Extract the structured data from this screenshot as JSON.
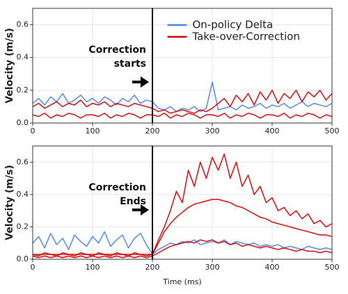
{
  "chart_data": [
    {
      "type": "line",
      "ylabel": "Velocity (m/s)",
      "annotation": [
        "Correction",
        "starts"
      ],
      "vline": 200,
      "xlim": [
        0,
        500
      ],
      "xticks": [
        0,
        100,
        200,
        300,
        400,
        500
      ],
      "ylim": [
        0,
        0.7
      ],
      "yticks": [
        {
          "value": 0,
          "label": "0.0"
        },
        0.2,
        0.4,
        0.6
      ],
      "grid": true,
      "legend": "upper right",
      "x": [
        0,
        10,
        20,
        30,
        40,
        50,
        60,
        70,
        80,
        90,
        100,
        110,
        120,
        130,
        140,
        150,
        160,
        170,
        180,
        190,
        200,
        210,
        220,
        230,
        240,
        250,
        260,
        270,
        280,
        290,
        300,
        310,
        320,
        330,
        340,
        350,
        360,
        370,
        380,
        390,
        400,
        410,
        420,
        430,
        440,
        450,
        460,
        470,
        480,
        490,
        500
      ],
      "series": [
        {
          "name": "On-policy Delta",
          "color": "#4a86e8",
          "values": [
            0.12,
            0.15,
            0.11,
            0.16,
            0.13,
            0.18,
            0.12,
            0.14,
            0.17,
            0.13,
            0.15,
            0.12,
            0.16,
            0.14,
            0.11,
            0.15,
            0.13,
            0.17,
            0.12,
            0.14,
            0.13,
            0.09,
            0.08,
            0.1,
            0.07,
            0.09,
            0.08,
            0.1,
            0.07,
            0.09,
            0.25,
            0.08,
            0.09,
            0.1,
            0.08,
            0.11,
            0.09,
            0.1,
            0.12,
            0.09,
            0.11,
            0.1,
            0.12,
            0.09,
            0.11,
            0.13,
            0.1,
            0.12,
            0.11,
            0.1,
            0.12
          ]
        },
        {
          "name": "Take-over-Correction",
          "color": "#d40000",
          "values": [
            0.1,
            0.12,
            0.09,
            0.11,
            0.13,
            0.1,
            0.12,
            0.11,
            0.14,
            0.1,
            0.12,
            0.11,
            0.13,
            0.1,
            0.12,
            0.11,
            0.1,
            0.12,
            0.11,
            0.1,
            0.09,
            0.07,
            0.08,
            0.06,
            0.07,
            0.08,
            0.07,
            0.06,
            0.08,
            0.07,
            0.09,
            0.12,
            0.15,
            0.1,
            0.17,
            0.13,
            0.18,
            0.11,
            0.19,
            0.14,
            0.2,
            0.12,
            0.18,
            0.15,
            0.2,
            0.13,
            0.19,
            0.16,
            0.2,
            0.14,
            0.18
          ]
        },
        {
          "color": "#d40000",
          "values": [
            0.05,
            0.04,
            0.06,
            0.03,
            0.05,
            0.04,
            0.06,
            0.05,
            0.03,
            0.05,
            0.05,
            0.04,
            0.06,
            0.03,
            0.05,
            0.04,
            0.06,
            0.05,
            0.03,
            0.05,
            0.05,
            0.04,
            0.06,
            0.03,
            0.05,
            0.04,
            0.06,
            0.05,
            0.03,
            0.05,
            0.05,
            0.04,
            0.06,
            0.03,
            0.05,
            0.04,
            0.06,
            0.05,
            0.03,
            0.05,
            0.05,
            0.04,
            0.06,
            0.03,
            0.05,
            0.04,
            0.06,
            0.05,
            0.03,
            0.05,
            0.04
          ]
        }
      ]
    },
    {
      "type": "line",
      "ylabel": "Velocity (m/s)",
      "xlabel": "Time (ms)",
      "annotation": [
        "Correction",
        "Ends"
      ],
      "vline": 200,
      "xlim": [
        0,
        500
      ],
      "xticks": [
        0,
        100,
        200,
        300,
        400,
        500
      ],
      "ylim": [
        0,
        0.7
      ],
      "yticks": [
        {
          "value": 0,
          "label": "0.0"
        },
        0.2,
        0.4,
        0.6
      ],
      "grid": true,
      "x": [
        0,
        10,
        20,
        30,
        40,
        50,
        60,
        70,
        80,
        90,
        100,
        110,
        120,
        130,
        140,
        150,
        160,
        170,
        180,
        190,
        200,
        210,
        220,
        230,
        240,
        250,
        260,
        270,
        280,
        290,
        300,
        310,
        320,
        330,
        340,
        350,
        360,
        370,
        380,
        390,
        400,
        410,
        420,
        430,
        440,
        450,
        460,
        470,
        480,
        490,
        500
      ],
      "series": [
        {
          "color": "#4a86e8",
          "values": [
            0.1,
            0.14,
            0.07,
            0.16,
            0.09,
            0.13,
            0.06,
            0.15,
            0.11,
            0.08,
            0.14,
            0.1,
            0.17,
            0.08,
            0.12,
            0.15,
            0.07,
            0.13,
            0.16,
            0.09,
            0.03,
            0.06,
            0.08,
            0.1,
            0.09,
            0.11,
            0.1,
            0.12,
            0.09,
            0.1,
            0.11,
            0.1,
            0.12,
            0.09,
            0.11,
            0.1,
            0.09,
            0.1,
            0.08,
            0.09,
            0.08,
            0.09,
            0.07,
            0.08,
            0.07,
            0.06,
            0.08,
            0.07,
            0.06,
            0.07,
            0.06
          ]
        },
        {
          "color": "#d40000",
          "values": [
            0.03,
            0.02,
            0.04,
            0.03,
            0.02,
            0.04,
            0.03,
            0.02,
            0.04,
            0.03,
            0.02,
            0.04,
            0.03,
            0.02,
            0.04,
            0.03,
            0.02,
            0.04,
            0.03,
            0.02,
            0.03,
            0.12,
            0.2,
            0.3,
            0.42,
            0.35,
            0.55,
            0.45,
            0.6,
            0.5,
            0.63,
            0.55,
            0.65,
            0.5,
            0.6,
            0.45,
            0.52,
            0.4,
            0.45,
            0.35,
            0.38,
            0.3,
            0.32,
            0.27,
            0.3,
            0.25,
            0.28,
            0.22,
            0.24,
            0.2,
            0.22
          ]
        },
        {
          "color": "#d40000",
          "values": [
            0.03,
            0.03,
            0.03,
            0.03,
            0.03,
            0.03,
            0.03,
            0.03,
            0.03,
            0.03,
            0.03,
            0.03,
            0.03,
            0.03,
            0.03,
            0.03,
            0.03,
            0.03,
            0.03,
            0.03,
            0.03,
            0.1,
            0.17,
            0.22,
            0.26,
            0.29,
            0.32,
            0.34,
            0.35,
            0.36,
            0.37,
            0.37,
            0.36,
            0.35,
            0.33,
            0.32,
            0.3,
            0.28,
            0.26,
            0.25,
            0.23,
            0.22,
            0.21,
            0.2,
            0.19,
            0.18,
            0.17,
            0.16,
            0.15,
            0.15,
            0.14
          ]
        },
        {
          "color": "#d40000",
          "values": [
            0.02,
            0.01,
            0.02,
            0.01,
            0.02,
            0.01,
            0.02,
            0.01,
            0.02,
            0.01,
            0.02,
            0.01,
            0.02,
            0.01,
            0.02,
            0.01,
            0.02,
            0.01,
            0.02,
            0.01,
            0.02,
            0.04,
            0.06,
            0.08,
            0.09,
            0.1,
            0.11,
            0.1,
            0.12,
            0.11,
            0.12,
            0.1,
            0.11,
            0.09,
            0.1,
            0.08,
            0.09,
            0.08,
            0.07,
            0.08,
            0.07,
            0.06,
            0.07,
            0.06,
            0.05,
            0.06,
            0.05,
            0.05,
            0.04,
            0.05,
            0.04
          ]
        }
      ]
    }
  ]
}
